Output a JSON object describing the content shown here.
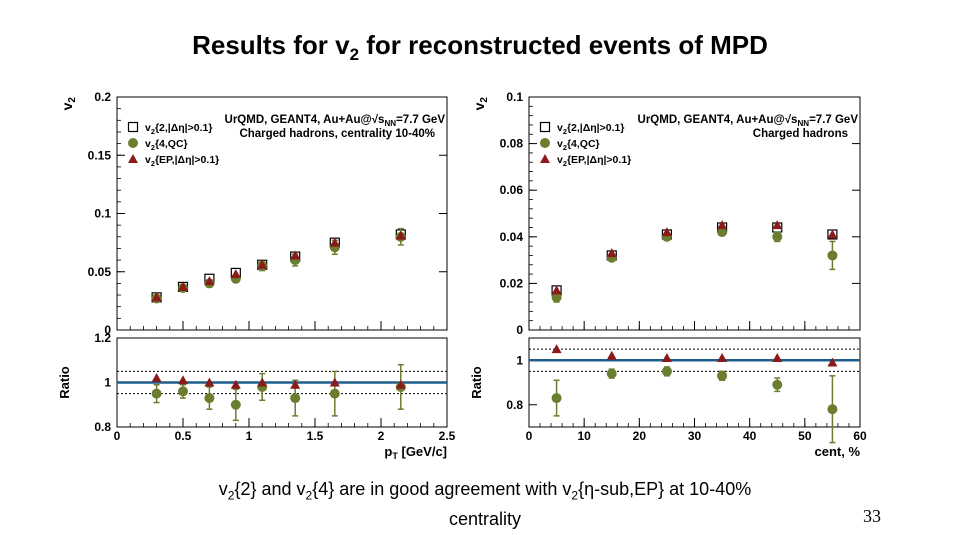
{
  "slide": {
    "title": "Results for v2 for reconstructed events of MPD",
    "caption_line1": "v2{2} and v2{4} are in good agreement with v2{η-sub,EP} at 10-40%",
    "caption_line2": "centrality",
    "page_number": "33"
  },
  "colors": {
    "v2_2_marker": "#000000",
    "v2_4_marker": "#6b7d2e",
    "v2_EP_marker": "#8b1a1a",
    "ratio_line": "#1f5f8b"
  },
  "chart_data": [
    {
      "type": "scatter",
      "panel": "left",
      "xlabel": "pT [GeV/c]",
      "ylabel": "v2",
      "ratio_ylabel": "Ratio",
      "xlim": [
        0,
        2.5
      ],
      "ylim": [
        0,
        0.2
      ],
      "ratio_ylim": [
        0.8,
        1.2
      ],
      "x_ticks": [
        "0",
        "0.5",
        "1",
        "1.5",
        "2",
        "2.5"
      ],
      "y_ticks": [
        "0",
        "0.05",
        "0.1",
        "0.15",
        "0.2"
      ],
      "ratio_y_ticks": [
        "0.8",
        "1",
        "1.2"
      ],
      "annotation_line1": "UrQMD, GEANT4, Au+Au@√sNN=7.7 GeV",
      "annotation_line2": "Charged hadrons, centrality 10-40%",
      "legend": [
        "v2{2,|Δη|>0.1}",
        "v2{4,QC}",
        "v2{EP,|Δη|>0.1}"
      ],
      "legend_position": "top-left",
      "series": [
        {
          "name": "v2{2,|Δη|>0.1}",
          "marker": "open-square",
          "x": [
            0.3,
            0.5,
            0.7,
            0.9,
            1.1,
            1.35,
            1.65,
            2.15
          ],
          "values": [
            0.028,
            0.037,
            0.044,
            0.049,
            0.056,
            0.063,
            0.075,
            0.082
          ]
        },
        {
          "name": "v2{4,QC}",
          "marker": "filled-circle",
          "x": [
            0.3,
            0.5,
            0.7,
            0.9,
            1.1,
            1.35,
            1.65,
            2.15
          ],
          "values": [
            0.027,
            0.036,
            0.04,
            0.044,
            0.055,
            0.06,
            0.071,
            0.08
          ],
          "errors": [
            0.002,
            0.002,
            0.003,
            0.003,
            0.004,
            0.005,
            0.006,
            0.007
          ]
        },
        {
          "name": "v2{EP,|Δη|>0.1}",
          "marker": "filled-triangle",
          "x": [
            0.3,
            0.5,
            0.7,
            0.9,
            1.1,
            1.35,
            1.65,
            2.15
          ],
          "values": [
            0.028,
            0.037,
            0.042,
            0.048,
            0.056,
            0.064,
            0.075,
            0.081
          ]
        }
      ],
      "ratio_series": [
        {
          "name": "v2{4,QC}",
          "marker": "filled-circle",
          "x": [
            0.3,
            0.5,
            0.7,
            0.9,
            1.1,
            1.35,
            1.65,
            2.15
          ],
          "values": [
            0.95,
            0.96,
            0.93,
            0.9,
            0.98,
            0.93,
            0.95,
            0.98
          ],
          "errors": [
            0.04,
            0.03,
            0.05,
            0.07,
            0.06,
            0.08,
            0.1,
            0.1
          ]
        },
        {
          "name": "v2{EP,|Δη|>0.1}",
          "marker": "filled-triangle",
          "x": [
            0.3,
            0.5,
            0.7,
            0.9,
            1.1,
            1.35,
            1.65,
            2.15
          ],
          "values": [
            1.02,
            1.01,
            1.0,
            0.99,
            1.0,
            0.99,
            1.0,
            0.99
          ]
        }
      ],
      "reference_lines": [
        1.0,
        1.05,
        0.95
      ]
    },
    {
      "type": "scatter",
      "panel": "right",
      "xlabel": "cent, %",
      "ylabel": "v2",
      "ratio_ylabel": "Ratio",
      "xlim": [
        0,
        60
      ],
      "ylim": [
        0,
        0.1
      ],
      "ratio_ylim": [
        0.7,
        1.1
      ],
      "x_ticks": [
        "0",
        "10",
        "20",
        "30",
        "40",
        "50",
        "60"
      ],
      "y_ticks": [
        "0",
        "0.02",
        "0.04",
        "0.06",
        "0.08",
        "0.1"
      ],
      "ratio_y_ticks": [
        "0.8",
        "1"
      ],
      "annotation_line1": "UrQMD, GEANT4, Au+Au@√sNN=7.7 GeV",
      "annotation_line2": "Charged hadrons",
      "legend": [
        "v2{2,|Δη|>0.1}",
        "v2{4,QC}",
        "v2{EP,|Δη|>0.1}"
      ],
      "legend_position": "top-left",
      "series": [
        {
          "name": "v2{2,|Δη|>0.1}",
          "marker": "open-square",
          "x": [
            5,
            15,
            25,
            35,
            45,
            55
          ],
          "values": [
            0.017,
            0.032,
            0.041,
            0.044,
            0.044,
            0.041
          ]
        },
        {
          "name": "v2{4,QC}",
          "marker": "filled-circle",
          "x": [
            5,
            15,
            25,
            35,
            45,
            55
          ],
          "values": [
            0.014,
            0.031,
            0.04,
            0.042,
            0.04,
            0.032
          ],
          "errors": [
            0.002,
            0.001,
            0.001,
            0.001,
            0.002,
            0.006
          ]
        },
        {
          "name": "v2{EP,|Δη|>0.1}",
          "marker": "filled-triangle",
          "x": [
            5,
            15,
            25,
            35,
            45,
            55
          ],
          "values": [
            0.017,
            0.033,
            0.042,
            0.045,
            0.045,
            0.041
          ]
        }
      ],
      "ratio_series": [
        {
          "name": "v2{4,QC}",
          "marker": "filled-circle",
          "x": [
            5,
            15,
            25,
            35,
            45,
            55
          ],
          "values": [
            0.83,
            0.94,
            0.95,
            0.93,
            0.89,
            0.78
          ],
          "errors": [
            0.08,
            0.02,
            0.02,
            0.02,
            0.03,
            0.15
          ]
        },
        {
          "name": "v2{EP,|Δη|>0.1}",
          "marker": "filled-triangle",
          "x": [
            5,
            15,
            25,
            35,
            45,
            55
          ],
          "values": [
            1.05,
            1.02,
            1.01,
            1.01,
            1.01,
            0.99
          ]
        }
      ],
      "reference_lines": [
        1.0,
        1.05,
        0.95
      ]
    }
  ]
}
